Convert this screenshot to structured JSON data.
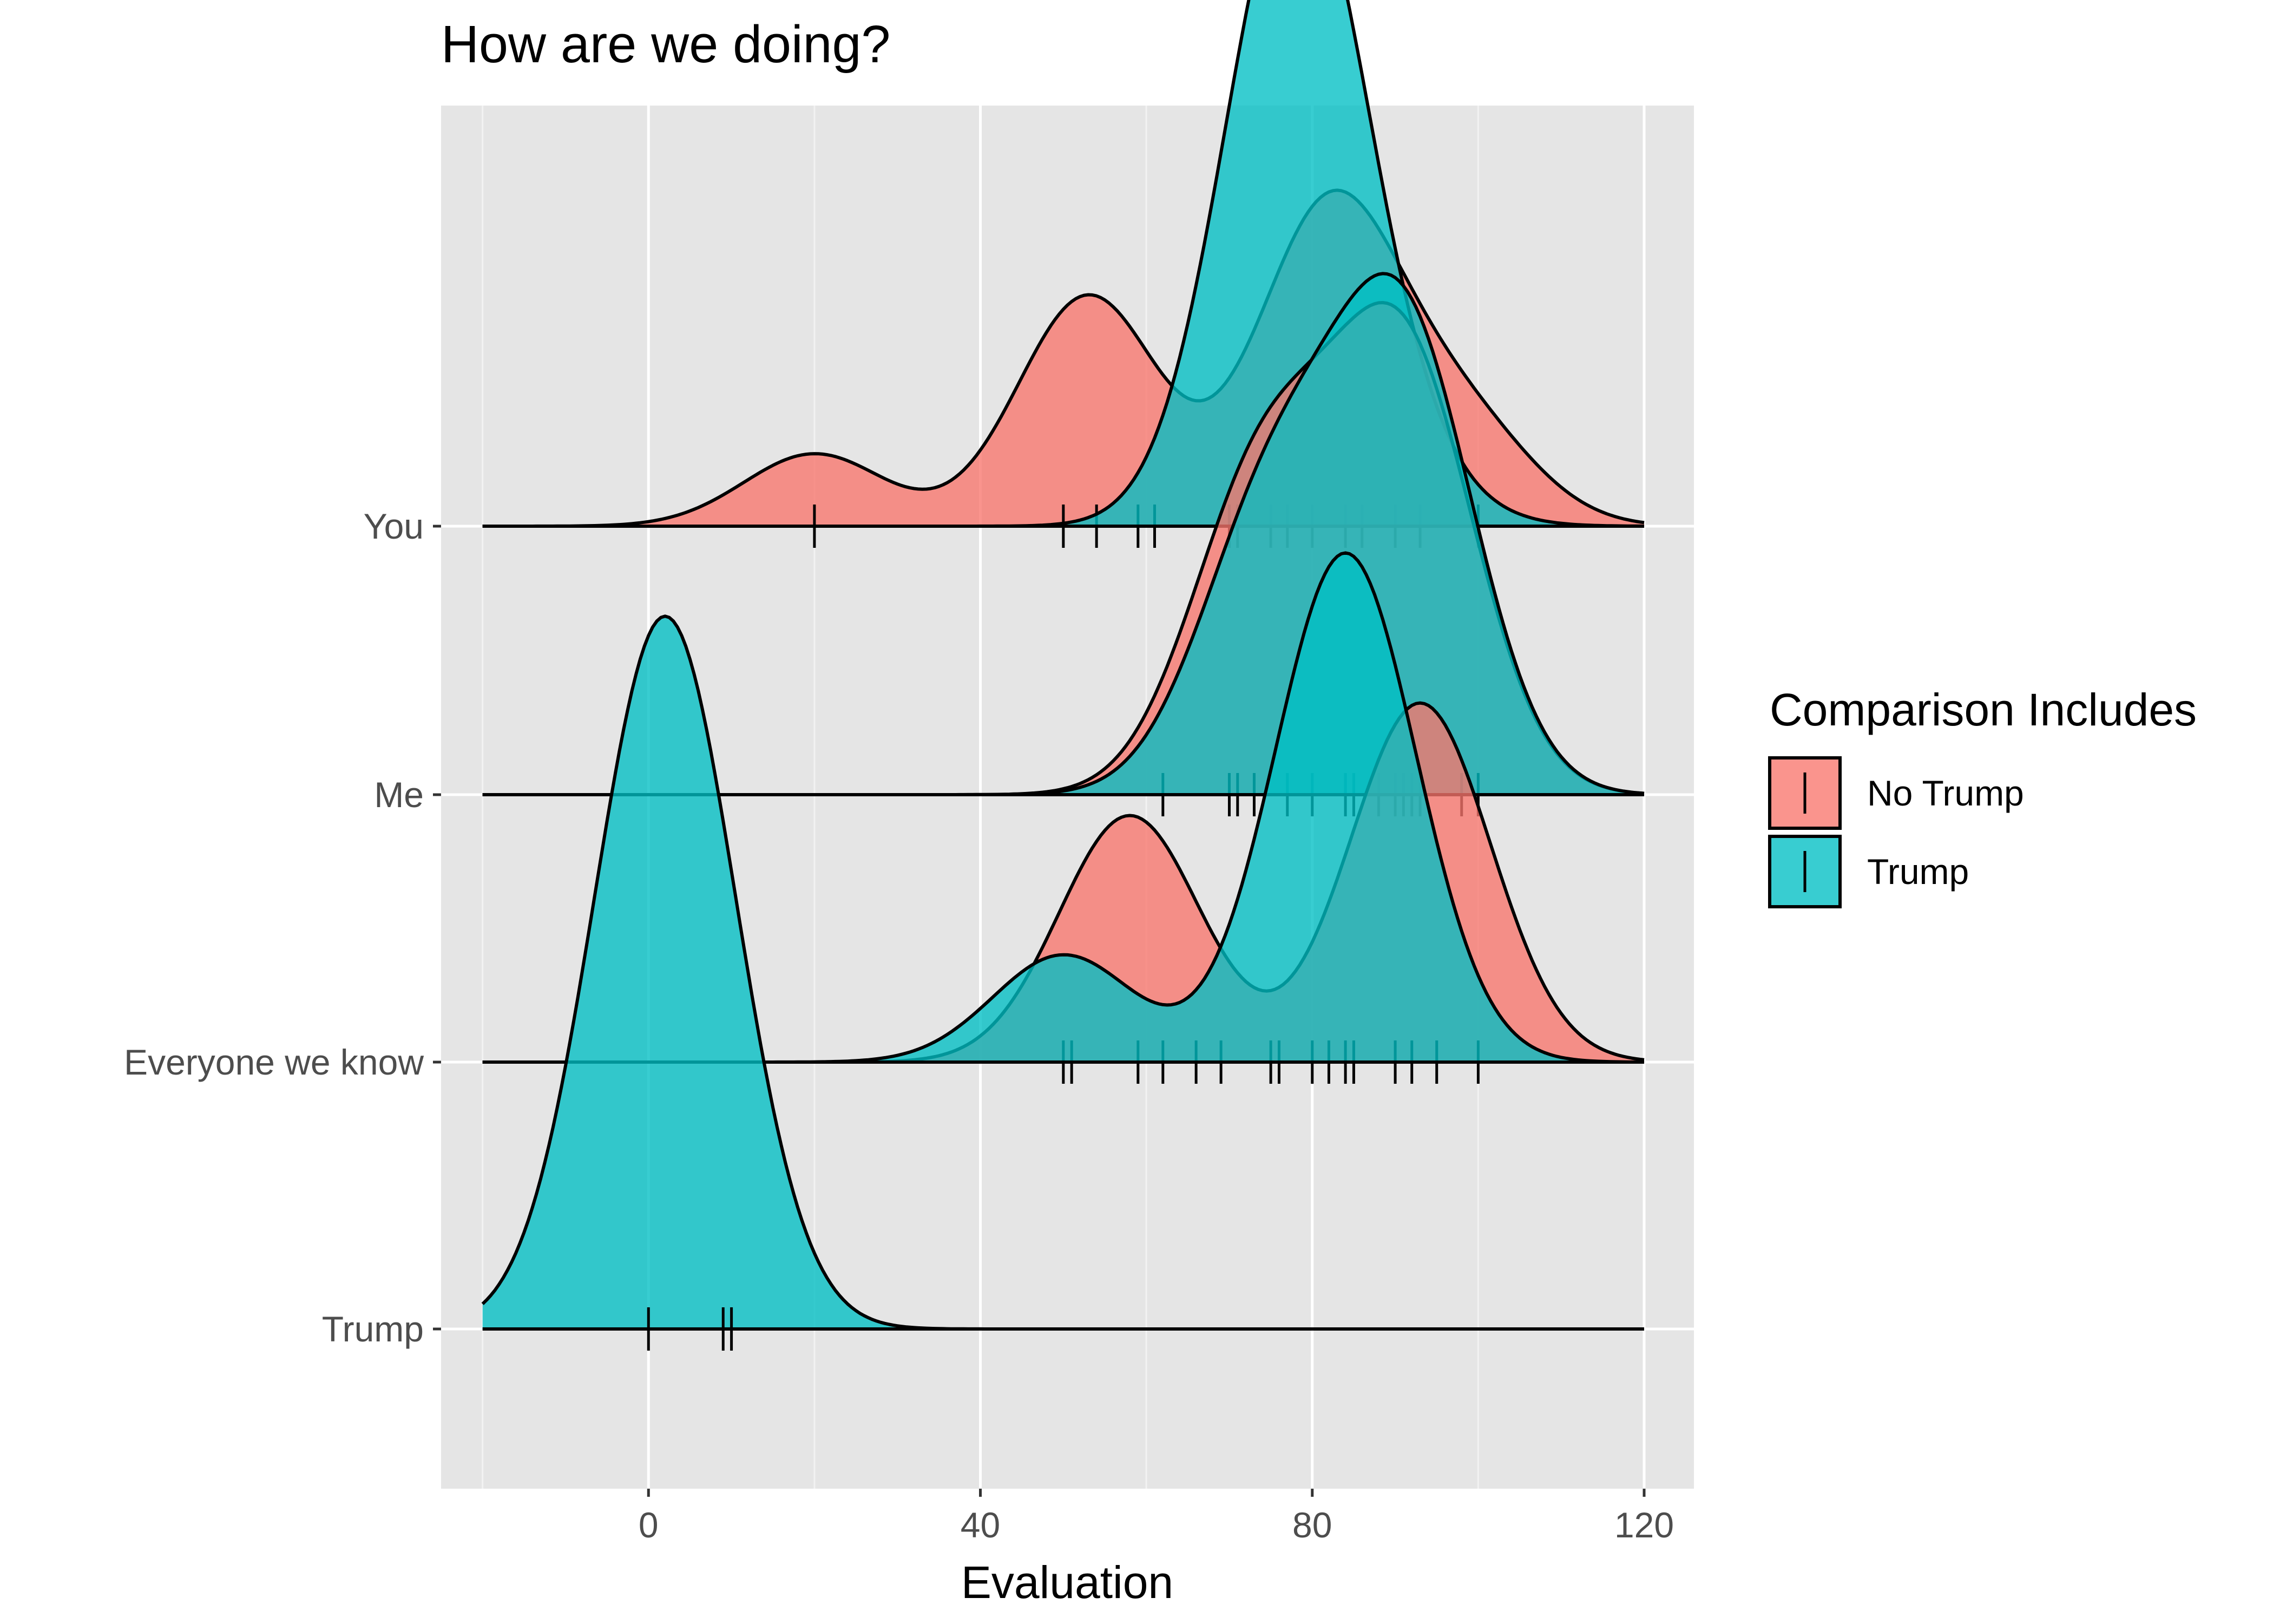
{
  "chart_data": {
    "type": "ridgeline",
    "title": "How are we doing?",
    "xlabel": "Evaluation",
    "ylabel": "",
    "xlim": [
      -25,
      126
    ],
    "x_ticks": [
      0,
      40,
      80,
      120
    ],
    "x_tick_labels": [
      "0",
      "40",
      "80",
      "120"
    ],
    "categories": [
      "Trump",
      "Everyone we know",
      "Me",
      "You"
    ],
    "grid": true,
    "legend": {
      "title": "Comparison Includes",
      "position": "right",
      "entries": [
        {
          "label": "No Trump",
          "color": "#F8766D"
        },
        {
          "label": "Trump",
          "color": "#00BFC4"
        }
      ]
    },
    "series": [
      {
        "name": "No Trump",
        "color": "#F8766D",
        "rows": [
          {
            "category": "You",
            "observations": [
              20,
              50,
              54,
              59,
              61,
              70,
              71,
              75,
              77,
              80,
              84,
              86,
              90,
              93,
              100
            ],
            "density_peaks": [
              {
                "x": 20,
                "h": 0.27
              },
              {
                "x": 53,
                "h": 0.86
              },
              {
                "x": 82,
                "h": 1.18
              },
              {
                "x": 98,
                "h": 0.38
              }
            ]
          },
          {
            "category": "Me",
            "observations": [
              62,
              70,
              71,
              73,
              77,
              80,
              84,
              85,
              88,
              90,
              91,
              92,
              93,
              98,
              100
            ],
            "density_peaks": [
              {
                "x": 74,
                "h": 1.18
              },
              {
                "x": 91,
                "h": 1.63
              }
            ]
          },
          {
            "category": "Everyone we know",
            "observations": [
              50,
              51,
              59,
              62,
              66,
              69,
              75,
              76,
              80,
              82,
              84,
              85,
              90,
              92,
              95,
              100
            ],
            "density_peaks": [
              {
                "x": 58,
                "h": 0.92
              },
              {
                "x": 93,
                "h": 1.34
              }
            ]
          }
        ]
      },
      {
        "name": "Trump",
        "color": "#00BFC4",
        "rows": [
          {
            "category": "You",
            "observations": [],
            "density_peaks": [
              {
                "x": 78,
                "h": 2.43
              },
              {
                "x": 90,
                "h": 0.14
              }
            ]
          },
          {
            "category": "Me",
            "observations": [],
            "density_peaks": [
              {
                "x": 75,
                "h": 1.05
              },
              {
                "x": 91,
                "h": 1.72
              }
            ]
          },
          {
            "category": "Everyone we know",
            "observations": [],
            "density_peaks": [
              {
                "x": 50,
                "h": 0.4
              },
              {
                "x": 84,
                "h": 1.9
              }
            ]
          },
          {
            "category": "Trump",
            "observations": [
              0,
              9,
              10
            ],
            "density_peaks": [
              {
                "x": 2,
                "h": 2.66
              }
            ]
          }
        ]
      }
    ]
  }
}
